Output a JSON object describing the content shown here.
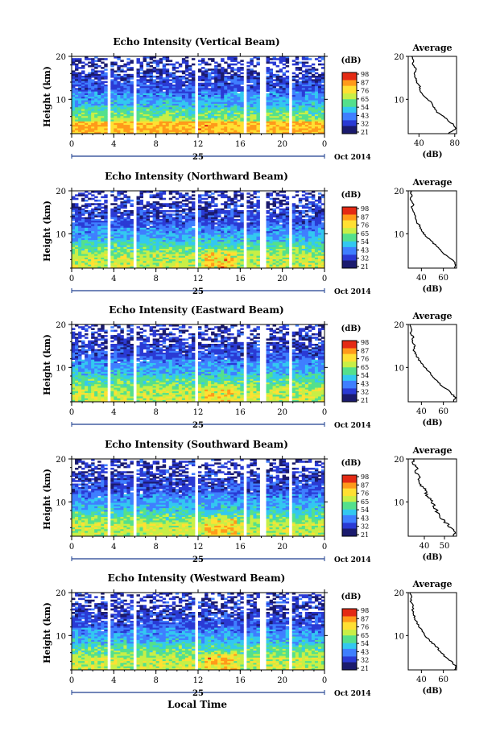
{
  "figure": {
    "bottom_xlabel": "Local Time"
  },
  "chart_data": [
    {
      "type": "heatmap",
      "title": "Echo Intensity (Vertical Beam)",
      "ylabel": "Height (km)",
      "xlabel": "",
      "ylim": [
        2,
        20
      ],
      "xlim": [
        0,
        24
      ],
      "x_ticks": [
        "0",
        "4",
        "8",
        "12",
        "16",
        "20",
        "0"
      ],
      "y_ticks": [
        "20",
        "10"
      ],
      "date_day": "25",
      "date_month_year": "Oct 2014",
      "colorbar": {
        "label": "(dB)",
        "ticks": [
          "98",
          "87",
          "76",
          "65",
          "54",
          "43",
          "32",
          "21"
        ]
      },
      "gaps_hours": [
        [
          3.4,
          3.8
        ],
        [
          5.9,
          6.1
        ],
        [
          11.8,
          12.1
        ],
        [
          16.3,
          16.6
        ],
        [
          17.8,
          18.4
        ],
        [
          20.6,
          20.8
        ]
      ],
      "profile": {
        "title": "Average",
        "xlabel": "(dB)",
        "x_ticks": [
          "40",
          "80"
        ],
        "xlim": [
          28,
          82
        ],
        "y_ticks": [
          "20",
          "10"
        ],
        "height_km": [
          2,
          3,
          4,
          5,
          6,
          7,
          8,
          9,
          10,
          11,
          12,
          13,
          14,
          15,
          16,
          17,
          18,
          19,
          20
        ],
        "values_db": [
          72,
          81,
          79,
          73,
          68,
          60,
          57,
          55,
          50,
          45,
          41,
          41,
          38,
          36,
          35,
          37,
          33,
          34,
          32
        ]
      }
    },
    {
      "type": "heatmap",
      "title": "Echo Intensity (Northward Beam)",
      "ylabel": "Height (km)",
      "xlabel": "",
      "ylim": [
        2,
        20
      ],
      "xlim": [
        0,
        24
      ],
      "x_ticks": [
        "0",
        "4",
        "8",
        "12",
        "16",
        "20",
        "0"
      ],
      "y_ticks": [
        "20",
        "10"
      ],
      "date_day": "25",
      "date_month_year": "Oct 2014",
      "colorbar": {
        "label": "(dB)",
        "ticks": [
          "98",
          "87",
          "76",
          "65",
          "54",
          "43",
          "32",
          "21"
        ]
      },
      "gaps_hours": [
        [
          3.4,
          3.8
        ],
        [
          5.9,
          6.1
        ],
        [
          11.8,
          12.1
        ],
        [
          16.3,
          16.6
        ],
        [
          17.8,
          18.4
        ],
        [
          20.6,
          20.8
        ]
      ],
      "profile": {
        "title": "Average",
        "xlabel": "(dB)",
        "x_ticks": [
          "40",
          "60"
        ],
        "xlim": [
          28,
          72
        ],
        "y_ticks": [
          "20",
          "10"
        ],
        "height_km": [
          2,
          3,
          4,
          5,
          6,
          7,
          8,
          9,
          10,
          11,
          12,
          13,
          14,
          15,
          16,
          17,
          18,
          19,
          20
        ],
        "values_db": [
          70,
          71,
          68,
          62,
          58,
          55,
          50,
          46,
          42,
          40,
          38,
          35,
          34,
          33,
          31,
          33,
          30,
          31,
          30
        ]
      }
    },
    {
      "type": "heatmap",
      "title": "Echo Intensity (Eastward Beam)",
      "ylabel": "Height (km)",
      "xlabel": "",
      "ylim": [
        2,
        20
      ],
      "xlim": [
        0,
        24
      ],
      "x_ticks": [
        "0",
        "4",
        "8",
        "12",
        "16",
        "20",
        "0"
      ],
      "y_ticks": [
        "20",
        "10"
      ],
      "date_day": "25",
      "date_month_year": "Oct 2014",
      "colorbar": {
        "label": "(dB)",
        "ticks": [
          "98",
          "87",
          "76",
          "65",
          "54",
          "43",
          "32",
          "21"
        ]
      },
      "gaps_hours": [
        [
          3.4,
          3.8
        ],
        [
          5.9,
          6.1
        ],
        [
          11.8,
          12.1
        ],
        [
          16.3,
          16.6
        ],
        [
          17.8,
          18.4
        ],
        [
          20.6,
          20.8
        ]
      ],
      "profile": {
        "title": "Average",
        "xlabel": "(dB)",
        "x_ticks": [
          "40",
          "60"
        ],
        "xlim": [
          28,
          72
        ],
        "y_ticks": [
          "20",
          "10"
        ],
        "height_km": [
          2,
          3,
          4,
          5,
          6,
          7,
          8,
          9,
          10,
          11,
          12,
          13,
          14,
          15,
          16,
          17,
          18,
          19,
          20
        ],
        "values_db": [
          69,
          71,
          67,
          63,
          57,
          54,
          50,
          47,
          43,
          40,
          37,
          35,
          33,
          34,
          31,
          33,
          30,
          31,
          30
        ]
      }
    },
    {
      "type": "heatmap",
      "title": "Echo Intensity (Southward Beam)",
      "ylabel": "Height (km)",
      "xlabel": "",
      "ylim": [
        2,
        20
      ],
      "xlim": [
        0,
        24
      ],
      "x_ticks": [
        "0",
        "4",
        "8",
        "12",
        "16",
        "20",
        "0"
      ],
      "y_ticks": [
        "20",
        "10"
      ],
      "date_day": "25",
      "date_month_year": "Oct 2014",
      "colorbar": {
        "label": "(dB)",
        "ticks": [
          "98",
          "87",
          "76",
          "65",
          "54",
          "43",
          "32",
          "21"
        ]
      },
      "gaps_hours": [
        [
          3.4,
          3.8
        ],
        [
          5.9,
          6.1
        ],
        [
          11.8,
          12.1
        ],
        [
          16.3,
          16.6
        ],
        [
          17.8,
          18.4
        ],
        [
          20.6,
          20.8
        ]
      ],
      "profile": {
        "title": "Average",
        "xlabel": "(dB)",
        "x_ticks": [
          "40",
          "50"
        ],
        "xlim": [
          32,
          56
        ],
        "y_ticks": [
          "20",
          "10"
        ],
        "height_km": [
          2,
          3,
          4,
          5,
          6,
          7,
          8,
          9,
          10,
          11,
          12,
          13,
          14,
          15,
          16,
          17,
          18,
          19,
          20
        ],
        "values_db": [
          54,
          55,
          53,
          51,
          49,
          47,
          46,
          45,
          44,
          42,
          41,
          40,
          38,
          37,
          38,
          35,
          37,
          34,
          35
        ]
      }
    },
    {
      "type": "heatmap",
      "title": "Echo Intensity (Westward Beam)",
      "ylabel": "Height (km)",
      "xlabel": "",
      "ylim": [
        2,
        20
      ],
      "xlim": [
        0,
        24
      ],
      "x_ticks": [
        "0",
        "4",
        "8",
        "12",
        "16",
        "20",
        "0"
      ],
      "y_ticks": [
        "20",
        "10"
      ],
      "date_day": "25",
      "date_month_year": "Oct 2014",
      "colorbar": {
        "label": "(dB)",
        "ticks": [
          "98",
          "87",
          "76",
          "65",
          "54",
          "43",
          "32",
          "21"
        ]
      },
      "gaps_hours": [
        [
          3.4,
          3.8
        ],
        [
          5.9,
          6.1
        ],
        [
          11.8,
          12.1
        ],
        [
          16.3,
          16.6
        ],
        [
          17.8,
          18.4
        ],
        [
          20.6,
          20.8
        ]
      ],
      "profile": {
        "title": "Average",
        "xlabel": "(dB)",
        "x_ticks": [
          "40",
          "60"
        ],
        "xlim": [
          28,
          72
        ],
        "y_ticks": [
          "20",
          "10"
        ],
        "height_km": [
          2,
          3,
          4,
          5,
          6,
          7,
          8,
          9,
          10,
          11,
          12,
          13,
          14,
          15,
          16,
          17,
          18,
          19,
          20
        ],
        "values_db": [
          70,
          71,
          67,
          62,
          58,
          55,
          51,
          47,
          43,
          41,
          38,
          36,
          34,
          33,
          32,
          33,
          30,
          31,
          30
        ]
      }
    }
  ],
  "colors": {
    "colormap": [
      "#1b1b6e",
      "#2a3ad4",
      "#3f7fff",
      "#33c8f0",
      "#54e08c",
      "#c8ef46",
      "#ffe033",
      "#ff9a1a",
      "#e42a14"
    ],
    "axis": "#000000",
    "date_bar": "#1d3f8f"
  }
}
